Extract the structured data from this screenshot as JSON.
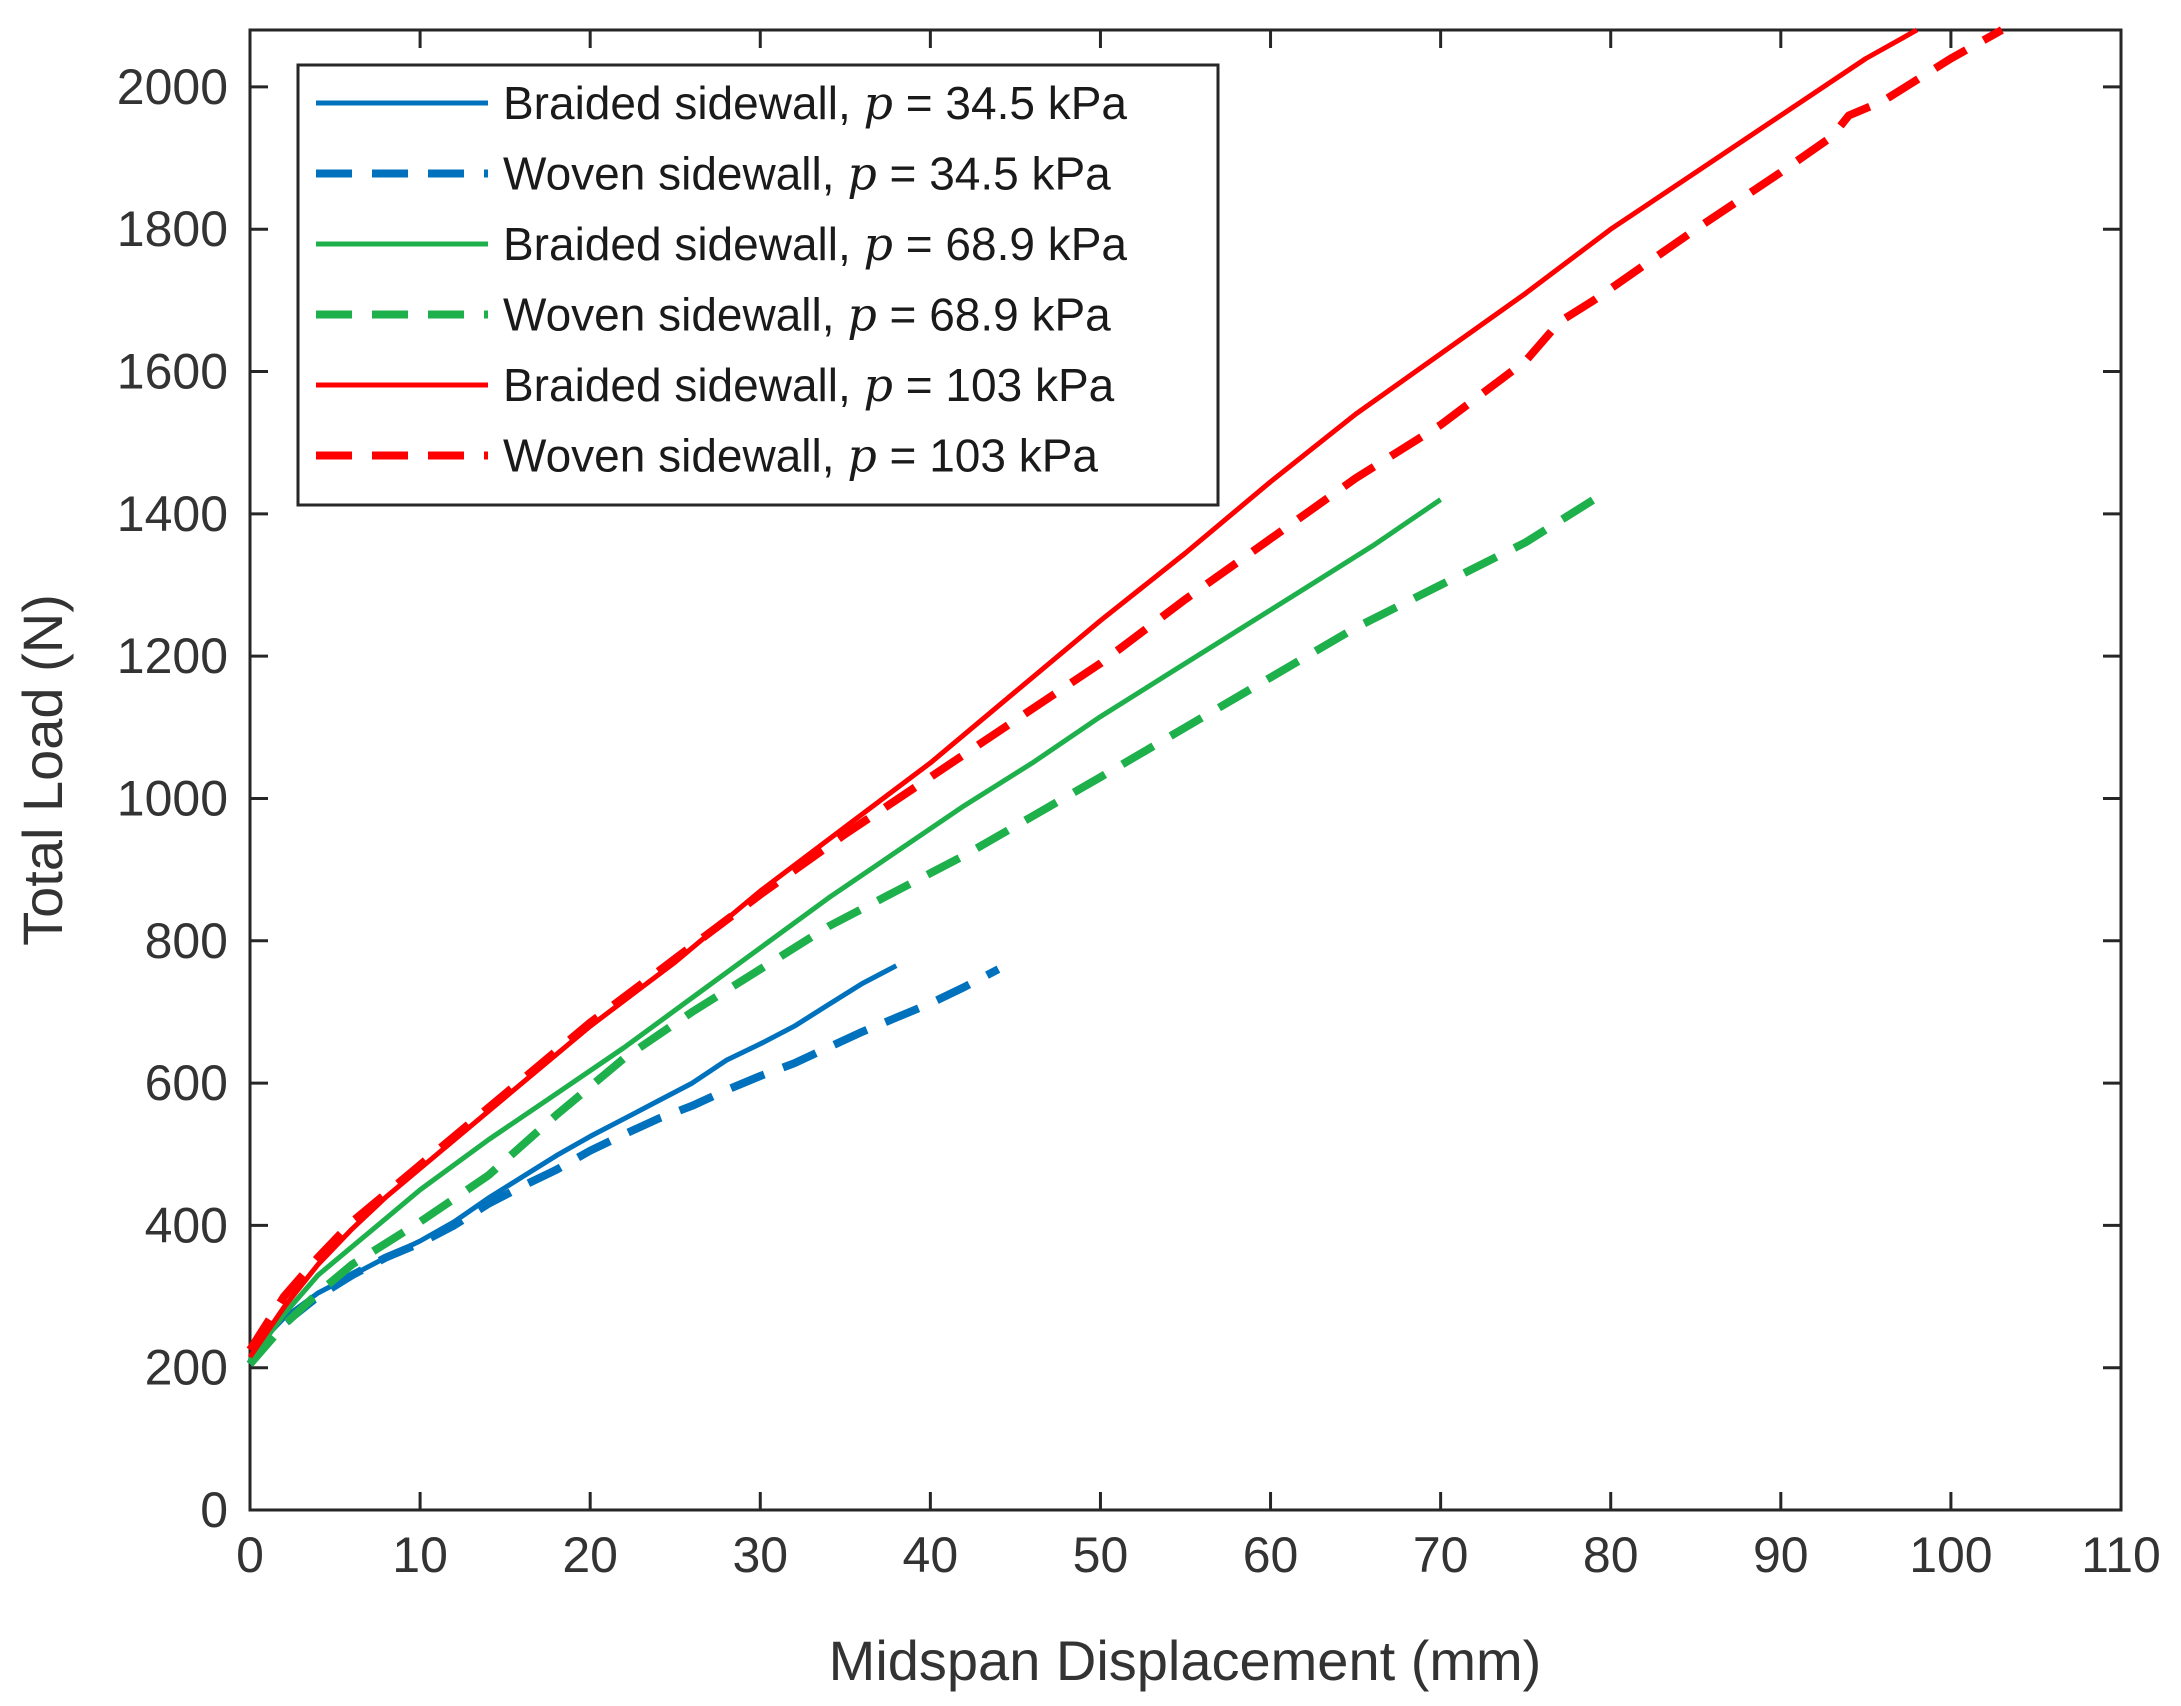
{
  "chart_data": {
    "type": "line",
    "title": "",
    "xlabel": "Midspan Displacement (mm)",
    "ylabel": "Total Load (N)",
    "xlim": [
      0,
      110
    ],
    "ylim": [
      0,
      2080
    ],
    "xticks": [
      0,
      10,
      20,
      30,
      40,
      50,
      60,
      70,
      80,
      90,
      100,
      110
    ],
    "yticks": [
      0,
      200,
      400,
      600,
      800,
      1000,
      1200,
      1400,
      1600,
      1800,
      2000
    ],
    "grid": false,
    "legend_position": "top-left",
    "series": [
      {
        "name_prefix": "Braided sidewall, ",
        "name_var": "p",
        "name_suffix": " = 34.5 kPa",
        "color": "#0072BD",
        "style": "solid",
        "x": [
          0,
          1,
          2,
          4,
          6,
          8,
          10,
          12,
          14,
          16,
          18,
          20,
          22,
          24,
          26,
          28,
          30,
          32,
          34,
          36,
          38
        ],
        "y": [
          210,
          245,
          270,
          305,
          330,
          355,
          378,
          405,
          438,
          468,
          498,
          525,
          550,
          575,
          600,
          632,
          655,
          680,
          710,
          740,
          765
        ]
      },
      {
        "name_prefix": "Woven sidewall, ",
        "name_var": "p",
        "name_suffix": " = 34.5 kPa",
        "color": "#0072BD",
        "style": "dashed",
        "x": [
          0,
          1,
          2,
          4,
          6,
          8,
          10,
          12,
          14,
          16,
          18,
          20,
          22,
          24,
          26,
          28,
          30,
          32,
          34,
          36,
          38,
          40,
          42,
          44
        ],
        "y": [
          205,
          240,
          262,
          300,
          330,
          355,
          375,
          400,
          430,
          455,
          478,
          505,
          528,
          550,
          568,
          590,
          610,
          628,
          650,
          672,
          692,
          712,
          735,
          760
        ]
      },
      {
        "name_prefix": "Braided sidewall, ",
        "name_var": "p",
        "name_suffix": " = 68.9 kPa",
        "color": "#1EB04B",
        "style": "solid",
        "x": [
          0,
          2,
          4,
          6,
          8,
          10,
          14,
          18,
          22,
          26,
          30,
          34,
          38,
          42,
          46,
          50,
          54,
          58,
          62,
          66,
          70
        ],
        "y": [
          210,
          275,
          330,
          370,
          410,
          450,
          520,
          585,
          650,
          720,
          790,
          860,
          925,
          990,
          1050,
          1115,
          1175,
          1235,
          1295,
          1355,
          1420
        ]
      },
      {
        "name_prefix": "Woven sidewall, ",
        "name_var": "p",
        "name_suffix": " = 68.9 kPa",
        "color": "#1EB04B",
        "style": "dashed",
        "x": [
          0,
          2,
          4,
          6,
          8,
          10,
          14,
          18,
          19,
          22,
          26,
          30,
          34,
          38,
          42,
          46,
          50,
          55,
          60,
          65,
          70,
          75,
          79
        ],
        "y": [
          205,
          260,
          305,
          345,
          375,
          405,
          470,
          555,
          575,
          635,
          700,
          760,
          820,
          870,
          920,
          975,
          1030,
          1100,
          1170,
          1240,
          1300,
          1360,
          1420
        ]
      },
      {
        "name_prefix": "Braided sidewall, ",
        "name_var": "p",
        "name_suffix": " = 103 kPa",
        "color": "#FF0000",
        "style": "solid",
        "x": [
          0,
          2,
          4,
          6,
          8,
          10,
          15,
          20,
          25,
          30,
          35,
          40,
          45,
          50,
          55,
          60,
          65,
          70,
          75,
          80,
          85,
          90,
          95,
          98
        ],
        "y": [
          215,
          285,
          345,
          395,
          440,
          480,
          580,
          680,
          770,
          870,
          960,
          1050,
          1150,
          1250,
          1345,
          1445,
          1540,
          1625,
          1710,
          1800,
          1880,
          1960,
          2040,
          2080
        ]
      },
      {
        "name_prefix": "Woven sidewall, ",
        "name_var": "p",
        "name_suffix": " = 103 kPa",
        "color": "#FF0000",
        "style": "dashed",
        "x": [
          0,
          2,
          4,
          6,
          8,
          10,
          15,
          20,
          25,
          30,
          35,
          40,
          45,
          50,
          55,
          60,
          65,
          70,
          75,
          77,
          79,
          85,
          90,
          93,
          94,
          96,
          100,
          103
        ],
        "y": [
          225,
          300,
          355,
          405,
          445,
          485,
          585,
          685,
          775,
          865,
          950,
          1030,
          1110,
          1190,
          1280,
          1365,
          1450,
          1525,
          1615,
          1670,
          1700,
          1800,
          1880,
          1930,
          1960,
          1980,
          2040,
          2080
        ]
      }
    ]
  }
}
